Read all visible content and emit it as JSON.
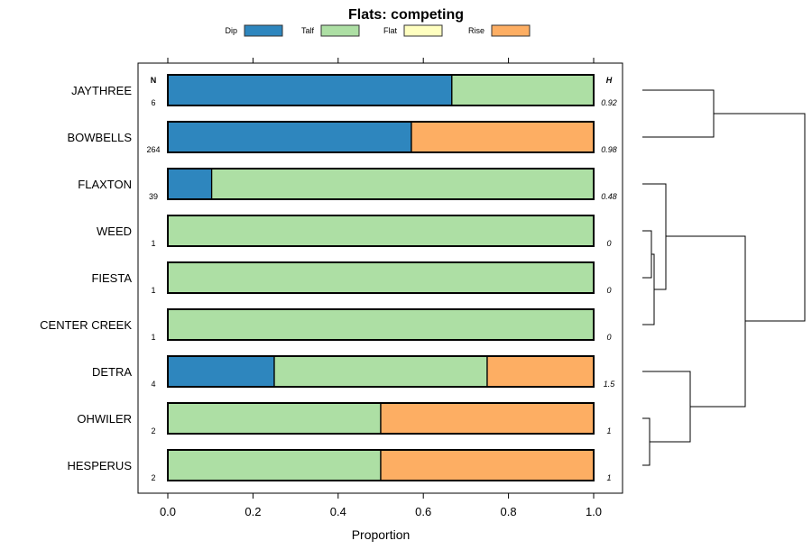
{
  "chart_data": {
    "type": "bar",
    "orientation": "horizontal-stacked",
    "title": "Flats: competing",
    "xlabel": "Proportion",
    "xlim": [
      -0.07,
      1.07
    ],
    "xticks": [
      0,
      0.2,
      0.4,
      0.6,
      0.8,
      1
    ],
    "xtick_labels": [
      "0.0",
      "0.2",
      "0.4",
      "0.6",
      "0.8",
      "1.0"
    ],
    "legend_placement": "top",
    "legend": [
      {
        "name": "Dip",
        "color": "#2e86be"
      },
      {
        "name": "Talf",
        "color": "#addfa4"
      },
      {
        "name": "Flat",
        "color": "#ffffc0"
      },
      {
        "name": "Rise",
        "color": "#fdae63"
      }
    ],
    "n_header": "N",
    "h_header": "H",
    "categories": [
      "JAYTHREE",
      "BOWBELLS",
      "FLAXTON",
      "WEED",
      "FIESTA",
      "CENTER CREEK",
      "DETRA",
      "OHWILER",
      "HESPERUS"
    ],
    "n": [
      "6",
      "264",
      "39",
      "1",
      "1",
      "1",
      "4",
      "2",
      "2"
    ],
    "h": [
      "0.92",
      "0.98",
      "0.48",
      "0",
      "0",
      "0",
      "1.5",
      "1",
      "1"
    ],
    "series": [
      {
        "name": "Dip",
        "values": [
          0.667,
          0.572,
          0.103,
          0,
          0,
          0,
          0.25,
          0,
          0
        ]
      },
      {
        "name": "Talf",
        "values": [
          0.333,
          0,
          0.897,
          1,
          1,
          1,
          0.5,
          0.5,
          0.5
        ]
      },
      {
        "name": "Flat",
        "values": [
          0,
          0,
          0,
          0,
          0,
          0,
          0,
          0,
          0
        ]
      },
      {
        "name": "Rise",
        "values": [
          0,
          0.428,
          0,
          0,
          0,
          0,
          0.25,
          0.5,
          0.5
        ]
      }
    ]
  }
}
